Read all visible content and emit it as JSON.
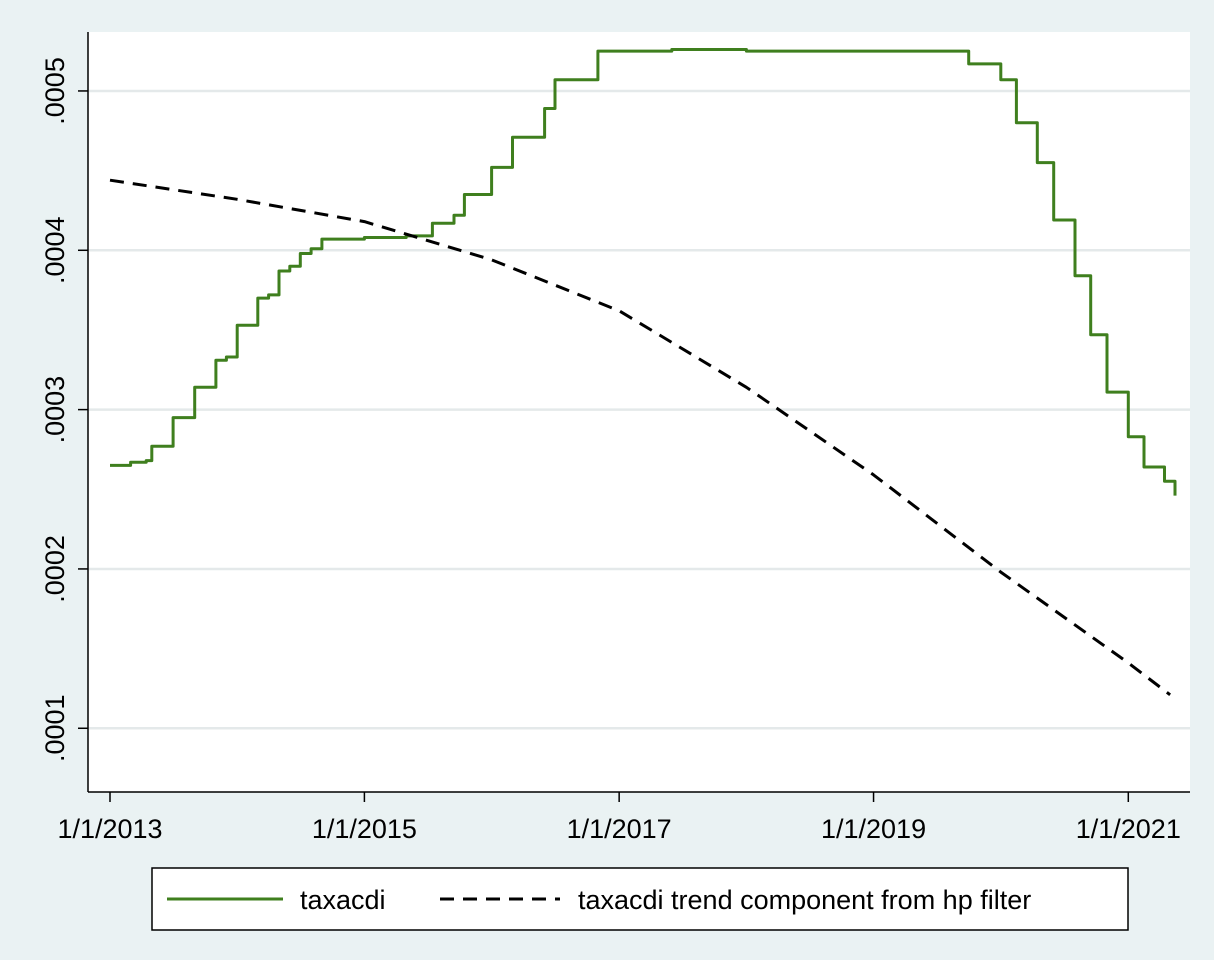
{
  "chart_data": {
    "type": "line",
    "title": "",
    "xlabel": "",
    "ylabel": "",
    "x_tick_labels": [
      "1/1/2013",
      "1/1/2015",
      "1/1/2017",
      "1/1/2019",
      "1/1/2021"
    ],
    "x_ticks": [
      "2013-01-01",
      "2015-01-01",
      "2017-01-01",
      "2019-01-01",
      "2021-01-01"
    ],
    "y_tick_labels": [
      ".0001",
      ".0002",
      ".0003",
      ".0004",
      ".0005"
    ],
    "y_ticks": [
      0.0001,
      0.0002,
      0.0003,
      0.0004,
      0.0005
    ],
    "xlim": [
      "2013-01-01",
      "2021-05-15"
    ],
    "ylim": [
      6e-05,
      0.000537
    ],
    "grid": "horizontal",
    "legend_position": "bottom",
    "series": [
      {
        "name": "taxacdi",
        "color": "#3f7f1e",
        "line_style": "solid",
        "step": true,
        "points": [
          [
            "2013-01-01",
            0.000265
          ],
          [
            "2013-03-01",
            0.000267
          ],
          [
            "2013-04-15",
            0.000268
          ],
          [
            "2013-05-01",
            0.000277
          ],
          [
            "2013-07-01",
            0.000295
          ],
          [
            "2013-09-01",
            0.000314
          ],
          [
            "2013-11-01",
            0.000331
          ],
          [
            "2013-12-01",
            0.000333
          ],
          [
            "2014-01-01",
            0.000353
          ],
          [
            "2014-03-01",
            0.00037
          ],
          [
            "2014-04-01",
            0.000372
          ],
          [
            "2014-05-01",
            0.000387
          ],
          [
            "2014-06-01",
            0.00039
          ],
          [
            "2014-07-01",
            0.000398
          ],
          [
            "2014-08-01",
            0.000401
          ],
          [
            "2014-09-01",
            0.000407
          ],
          [
            "2015-01-01",
            0.000408
          ],
          [
            "2015-05-01",
            0.000409
          ],
          [
            "2015-07-15",
            0.000417
          ],
          [
            "2015-09-15",
            0.000422
          ],
          [
            "2015-10-15",
            0.000435
          ],
          [
            "2016-01-01",
            0.000452
          ],
          [
            "2016-03-01",
            0.000471
          ],
          [
            "2016-06-01",
            0.000489
          ],
          [
            "2016-07-01",
            0.000507
          ],
          [
            "2016-11-01",
            0.000525
          ],
          [
            "2017-06-01",
            0.000526
          ],
          [
            "2018-01-01",
            0.000525
          ],
          [
            "2019-10-01",
            0.000517
          ],
          [
            "2020-01-01",
            0.000507
          ],
          [
            "2020-02-15",
            0.00048
          ],
          [
            "2020-04-15",
            0.000455
          ],
          [
            "2020-06-01",
            0.000419
          ],
          [
            "2020-08-01",
            0.000384
          ],
          [
            "2020-09-15",
            0.000347
          ],
          [
            "2020-11-01",
            0.000311
          ],
          [
            "2021-01-01",
            0.000283
          ],
          [
            "2021-02-15",
            0.000264
          ],
          [
            "2021-04-15",
            0.000255
          ],
          [
            "2021-05-15",
            0.000246
          ]
        ]
      },
      {
        "name": "taxacdi trend component from hp filter",
        "color": "#000000",
        "line_style": "dashed",
        "step": false,
        "points": [
          [
            "2013-01-01",
            0.000444
          ],
          [
            "2014-01-01",
            0.000432
          ],
          [
            "2015-01-01",
            0.000418
          ],
          [
            "2016-01-01",
            0.000394
          ],
          [
            "2017-01-01",
            0.000362
          ],
          [
            "2018-01-01",
            0.000314
          ],
          [
            "2019-01-01",
            0.000259
          ],
          [
            "2020-01-01",
            0.000198
          ],
          [
            "2021-01-01",
            0.000141
          ],
          [
            "2021-05-01",
            0.000121
          ]
        ]
      }
    ],
    "legend": [
      "taxacdi",
      "taxacdi trend component from hp filter"
    ]
  }
}
